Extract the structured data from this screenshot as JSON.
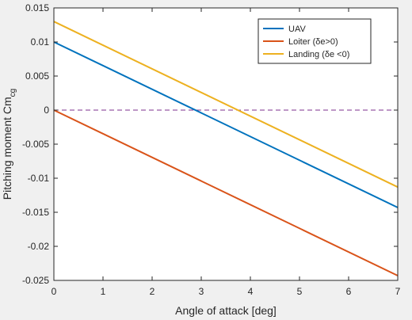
{
  "chart_data": {
    "type": "line",
    "xlabel": "Angle of attack [deg]",
    "ylabel": "Pitching moment Cm",
    "ylabel_subscript": "cg",
    "xlim": [
      0,
      7
    ],
    "ylim": [
      -0.025,
      0.015
    ],
    "xticks": [
      0,
      1,
      2,
      3,
      4,
      5,
      6,
      7
    ],
    "xtick_labels": [
      "0",
      "1",
      "2",
      "3",
      "4",
      "5",
      "6",
      "7"
    ],
    "yticks": [
      0.015,
      0.01,
      0.005,
      0,
      -0.005,
      -0.01,
      -0.015,
      -0.02,
      -0.025
    ],
    "ytick_labels": [
      "0.015",
      "0.01",
      "0.005",
      "0",
      "-0.005",
      "-0.01",
      "-0.015",
      "-0.02",
      "-0.025"
    ],
    "grid": false,
    "legend_position": "top-right",
    "series": [
      {
        "name": "UAV",
        "color": "#0072BD",
        "x": [
          0,
          7
        ],
        "y": [
          0.01,
          -0.0143
        ]
      },
      {
        "name": "Loiter (δe>0)",
        "color": "#D95319",
        "x": [
          0,
          7
        ],
        "y": [
          0.0,
          -0.0243
        ]
      },
      {
        "name": "Landing (δe <0)",
        "color": "#EDB120",
        "x": [
          0,
          7
        ],
        "y": [
          0.013,
          -0.0113
        ]
      }
    ],
    "reference_line": {
      "y": 0,
      "style": "dashed",
      "color": "#7E2F8E"
    }
  }
}
